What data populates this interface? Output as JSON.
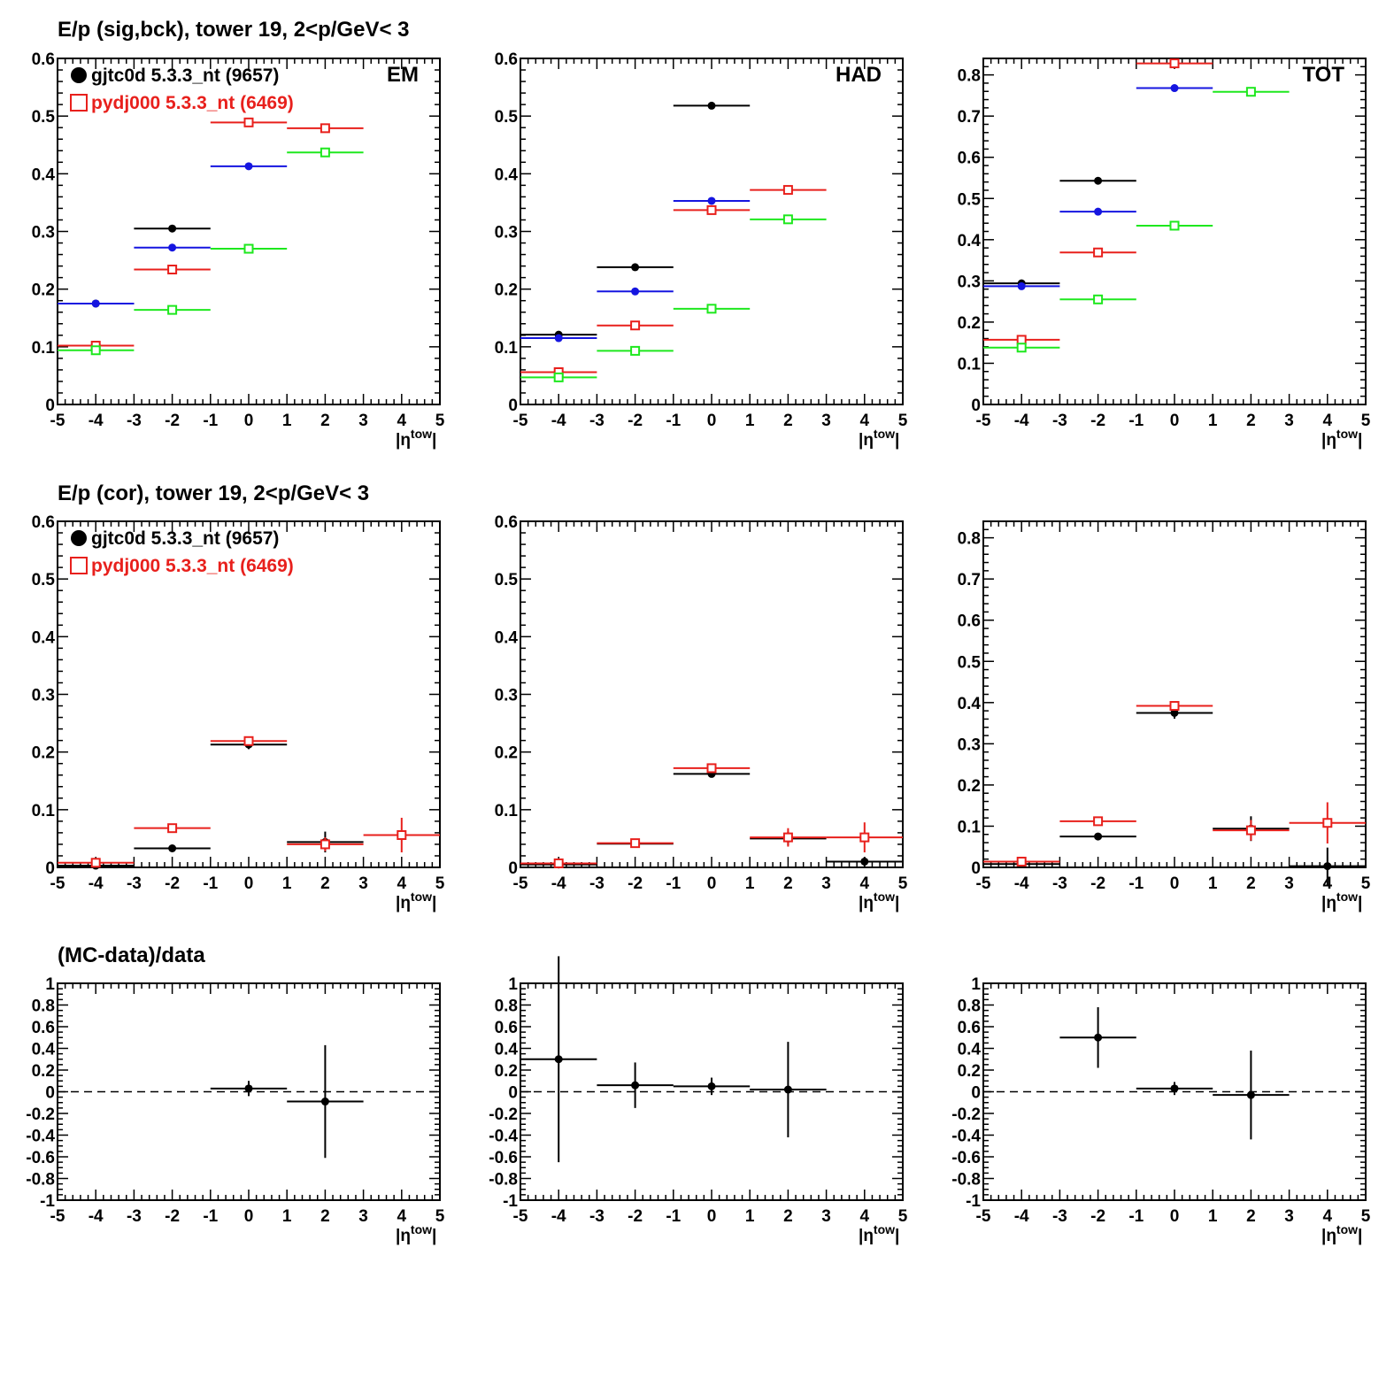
{
  "row_titles": [
    "E/p (sig,bck), tower 19,  2<p/GeV< 3",
    "E/p (cor), tower 19,  2<p/GeV< 3",
    "(MC-data)/data"
  ],
  "legend": [
    {
      "label": "gjtc0d 5.3.3_nt (9657)",
      "color": "#000000",
      "marker": "filled-circle"
    },
    {
      "label": "pydj000 5.3.3_nt (6469)",
      "color": "#e8201c",
      "marker": "open-square"
    }
  ],
  "colors": {
    "black": "#000000",
    "blue": "#1515e0",
    "red": "#e8201c",
    "green": "#1ee81e"
  },
  "x_axis_label": {
    "base": "|η",
    "sup": "tow",
    "end": "|"
  },
  "chart_data": [
    {
      "type": "scatter",
      "panel": "EM",
      "row": 0,
      "col": 0,
      "label": "EM",
      "xlim": [
        -5,
        5
      ],
      "ylim": [
        0,
        0.6
      ],
      "xticks": [
        -5,
        -4,
        -3,
        -2,
        -1,
        0,
        1,
        2,
        3,
        4,
        5
      ],
      "yticks": [
        0,
        0.1,
        0.2,
        0.3,
        0.4,
        0.5,
        0.6
      ],
      "yticklabels": [
        "0",
        "0.1",
        "0.2",
        "0.3",
        "0.4",
        "0.5",
        "0.6"
      ],
      "show_legend": true,
      "series": [
        {
          "color": "black",
          "marker": "filled-circle",
          "points": [
            {
              "x": -4,
              "y": 0.175
            },
            {
              "x": -2,
              "y": 0.305
            }
          ]
        },
        {
          "color": "blue",
          "marker": "filled-circle",
          "points": [
            {
              "x": -4,
              "y": 0.175
            },
            {
              "x": -2,
              "y": 0.272
            },
            {
              "x": 0,
              "y": 0.413
            }
          ]
        },
        {
          "color": "red",
          "marker": "open-square",
          "points": [
            {
              "x": -4,
              "y": 0.102
            },
            {
              "x": -2,
              "y": 0.234
            },
            {
              "x": 0,
              "y": 0.489
            },
            {
              "x": 2,
              "y": 0.479
            }
          ]
        },
        {
          "color": "green",
          "marker": "open-square",
          "points": [
            {
              "x": -4,
              "y": 0.094
            },
            {
              "x": -2,
              "y": 0.164
            },
            {
              "x": 0,
              "y": 0.27
            },
            {
              "x": 2,
              "y": 0.437
            }
          ]
        }
      ]
    },
    {
      "type": "scatter",
      "panel": "HAD",
      "row": 0,
      "col": 1,
      "label": "HAD",
      "xlim": [
        -5,
        5
      ],
      "ylim": [
        0,
        0.6
      ],
      "xticks": [
        -5,
        -4,
        -3,
        -2,
        -1,
        0,
        1,
        2,
        3,
        4,
        5
      ],
      "yticks": [
        0,
        0.1,
        0.2,
        0.3,
        0.4,
        0.5,
        0.6
      ],
      "yticklabels": [
        "0",
        "0.1",
        "0.2",
        "0.3",
        "0.4",
        "0.5",
        "0.6"
      ],
      "series": [
        {
          "color": "black",
          "marker": "filled-circle",
          "points": [
            {
              "x": -4,
              "y": 0.121
            },
            {
              "x": -2,
              "y": 0.238
            },
            {
              "x": 0,
              "y": 0.518
            }
          ]
        },
        {
          "color": "blue",
          "marker": "filled-circle",
          "points": [
            {
              "x": -4,
              "y": 0.115
            },
            {
              "x": -2,
              "y": 0.196
            },
            {
              "x": 0,
              "y": 0.353
            }
          ]
        },
        {
          "color": "red",
          "marker": "open-square",
          "points": [
            {
              "x": -4,
              "y": 0.056
            },
            {
              "x": -2,
              "y": 0.137
            },
            {
              "x": 0,
              "y": 0.337
            },
            {
              "x": 2,
              "y": 0.372
            }
          ]
        },
        {
          "color": "green",
          "marker": "open-square",
          "points": [
            {
              "x": -4,
              "y": 0.047
            },
            {
              "x": -2,
              "y": 0.093
            },
            {
              "x": 0,
              "y": 0.166
            },
            {
              "x": 2,
              "y": 0.321
            }
          ]
        }
      ]
    },
    {
      "type": "scatter",
      "panel": "TOT",
      "row": 0,
      "col": 2,
      "label": "TOT",
      "xlim": [
        -5,
        5
      ],
      "ylim": [
        0,
        0.84
      ],
      "xticks": [
        -5,
        -4,
        -3,
        -2,
        -1,
        0,
        1,
        2,
        3,
        4,
        5
      ],
      "yticks": [
        0,
        0.1,
        0.2,
        0.3,
        0.4,
        0.5,
        0.6,
        0.7,
        0.8
      ],
      "yticklabels": [
        "0",
        "0.1",
        "0.2",
        "0.3",
        "0.4",
        "0.5",
        "0.6",
        "0.7",
        "0.8"
      ],
      "series": [
        {
          "color": "black",
          "marker": "filled-circle",
          "points": [
            {
              "x": -4,
              "y": 0.294
            },
            {
              "x": -2,
              "y": 0.543
            }
          ]
        },
        {
          "color": "blue",
          "marker": "filled-circle",
          "points": [
            {
              "x": -4,
              "y": 0.287
            },
            {
              "x": -2,
              "y": 0.468
            },
            {
              "x": 0,
              "y": 0.768
            }
          ]
        },
        {
          "color": "red",
          "marker": "open-square",
          "points": [
            {
              "x": -4,
              "y": 0.157
            },
            {
              "x": -2,
              "y": 0.369
            },
            {
              "x": 0,
              "y": 0.828
            }
          ]
        },
        {
          "color": "green",
          "marker": "open-square",
          "points": [
            {
              "x": -4,
              "y": 0.138
            },
            {
              "x": -2,
              "y": 0.255
            },
            {
              "x": 0,
              "y": 0.434
            },
            {
              "x": 2,
              "y": 0.759
            }
          ]
        }
      ]
    },
    {
      "type": "scatter",
      "panel": "EM-cor",
      "row": 1,
      "col": 0,
      "label": "",
      "xlim": [
        -5,
        5
      ],
      "ylim": [
        0,
        0.6
      ],
      "xticks": [
        -5,
        -4,
        -3,
        -2,
        -1,
        0,
        1,
        2,
        3,
        4,
        5
      ],
      "yticks": [
        0,
        0.1,
        0.2,
        0.3,
        0.4,
        0.5,
        0.6
      ],
      "yticklabels": [
        "0",
        "0.1",
        "0.2",
        "0.3",
        "0.4",
        "0.5",
        "0.6"
      ],
      "show_legend": true,
      "series": [
        {
          "color": "black",
          "marker": "filled-circle",
          "points": [
            {
              "x": -4,
              "y": 0.003,
              "err": 0.004
            },
            {
              "x": -2,
              "y": 0.033,
              "err": 0.003
            },
            {
              "x": 0,
              "y": 0.213,
              "err": 0.008
            },
            {
              "x": 2,
              "y": 0.044,
              "err": 0.018
            }
          ]
        },
        {
          "color": "red",
          "marker": "open-square",
          "points": [
            {
              "x": -4,
              "y": 0.008,
              "err": 0.006
            },
            {
              "x": -2,
              "y": 0.068,
              "err": 0.004
            },
            {
              "x": 0,
              "y": 0.219,
              "err": 0.006
            },
            {
              "x": 2,
              "y": 0.04,
              "err": 0.012
            },
            {
              "x": 4,
              "y": 0.056,
              "err": 0.03
            }
          ]
        }
      ]
    },
    {
      "type": "scatter",
      "panel": "HAD-cor",
      "row": 1,
      "col": 1,
      "label": "",
      "xlim": [
        -5,
        5
      ],
      "ylim": [
        0,
        0.6
      ],
      "xticks": [
        -5,
        -4,
        -3,
        -2,
        -1,
        0,
        1,
        2,
        3,
        4,
        5
      ],
      "yticks": [
        0,
        0.1,
        0.2,
        0.3,
        0.4,
        0.5,
        0.6
      ],
      "yticklabels": [
        "0",
        "0.1",
        "0.2",
        "0.3",
        "0.4",
        "0.5",
        "0.6"
      ],
      "series": [
        {
          "color": "black",
          "marker": "filled-circle",
          "points": [
            {
              "x": -4,
              "y": 0.005,
              "err": 0.004
            },
            {
              "x": -2,
              "y": 0.041,
              "err": 0.004
            },
            {
              "x": 0,
              "y": 0.162,
              "err": 0.006
            },
            {
              "x": 2,
              "y": 0.05,
              "err": 0.012
            },
            {
              "x": 4,
              "y": 0.01,
              "err": 0.008
            }
          ]
        },
        {
          "color": "red",
          "marker": "open-square",
          "points": [
            {
              "x": -4,
              "y": 0.007,
              "err": 0.005
            },
            {
              "x": -2,
              "y": 0.042,
              "err": 0.004
            },
            {
              "x": 0,
              "y": 0.172,
              "err": 0.005
            },
            {
              "x": 2,
              "y": 0.052,
              "err": 0.016
            },
            {
              "x": 4,
              "y": 0.052,
              "err": 0.026
            }
          ]
        }
      ]
    },
    {
      "type": "scatter",
      "panel": "TOT-cor",
      "row": 1,
      "col": 2,
      "label": "",
      "xlim": [
        -5,
        5
      ],
      "ylim": [
        0,
        0.84
      ],
      "xticks": [
        -5,
        -4,
        -3,
        -2,
        -1,
        0,
        1,
        2,
        3,
        4,
        5
      ],
      "yticks": [
        0,
        0.1,
        0.2,
        0.3,
        0.4,
        0.5,
        0.6,
        0.7,
        0.8
      ],
      "yticklabels": [
        "0",
        "0.1",
        "0.2",
        "0.3",
        "0.4",
        "0.5",
        "0.6",
        "0.7",
        "0.8"
      ],
      "series": [
        {
          "color": "black",
          "marker": "filled-circle",
          "points": [
            {
              "x": -4,
              "y": 0.008,
              "err": 0.005
            },
            {
              "x": -2,
              "y": 0.075,
              "err": 0.006
            },
            {
              "x": 0,
              "y": 0.375,
              "err": 0.014
            },
            {
              "x": 2,
              "y": 0.094,
              "err": 0.03
            },
            {
              "x": 4,
              "y": 0.003,
              "err": 0.045
            }
          ]
        },
        {
          "color": "red",
          "marker": "open-square",
          "points": [
            {
              "x": -4,
              "y": 0.014,
              "err": 0.006
            },
            {
              "x": -2,
              "y": 0.112,
              "err": 0.006
            },
            {
              "x": 0,
              "y": 0.392,
              "err": 0.01
            },
            {
              "x": 2,
              "y": 0.09,
              "err": 0.025
            },
            {
              "x": 4,
              "y": 0.108,
              "err": 0.05
            }
          ]
        }
      ]
    },
    {
      "type": "scatter",
      "panel": "EM-ratio",
      "row": 2,
      "col": 0,
      "label": "",
      "xlim": [
        -5,
        5
      ],
      "ylim": [
        -1,
        1
      ],
      "xticks": [
        -5,
        -4,
        -3,
        -2,
        -1,
        0,
        1,
        2,
        3,
        4,
        5
      ],
      "yticks": [
        -1,
        -0.8,
        -0.6,
        -0.4,
        -0.2,
        0,
        0.2,
        0.4,
        0.6,
        0.8,
        1
      ],
      "yticklabels": [
        "-1",
        "-0.8",
        "-0.6",
        "-0.4",
        "-0.2",
        "0",
        "0.2",
        "0.4",
        "0.6",
        "0.8",
        "1"
      ],
      "zero_line": true,
      "series": [
        {
          "color": "black",
          "marker": "filled-circle",
          "points": [
            {
              "x": 0,
              "y": 0.03,
              "err": 0.07
            },
            {
              "x": 2,
              "y": -0.09,
              "err": 0.52
            }
          ]
        }
      ]
    },
    {
      "type": "scatter",
      "panel": "HAD-ratio",
      "row": 2,
      "col": 1,
      "label": "",
      "xlim": [
        -5,
        5
      ],
      "ylim": [
        -1,
        1
      ],
      "xticks": [
        -5,
        -4,
        -3,
        -2,
        -1,
        0,
        1,
        2,
        3,
        4,
        5
      ],
      "yticks": [
        -1,
        -0.8,
        -0.6,
        -0.4,
        -0.2,
        0,
        0.2,
        0.4,
        0.6,
        0.8,
        1
      ],
      "yticklabels": [
        "-1",
        "-0.8",
        "-0.6",
        "-0.4",
        "-0.2",
        "0",
        "0.2",
        "0.4",
        "0.6",
        "0.8",
        "1"
      ],
      "zero_line": true,
      "series": [
        {
          "color": "black",
          "marker": "filled-circle",
          "points": [
            {
              "x": -4,
              "y": 0.3,
              "err": 0.95
            },
            {
              "x": -2,
              "y": 0.06,
              "err": 0.21
            },
            {
              "x": 0,
              "y": 0.05,
              "err": 0.08
            },
            {
              "x": 2,
              "y": 0.02,
              "err": 0.44
            }
          ]
        }
      ]
    },
    {
      "type": "scatter",
      "panel": "TOT-ratio",
      "row": 2,
      "col": 2,
      "label": "",
      "xlim": [
        -5,
        5
      ],
      "ylim": [
        -1,
        1
      ],
      "xticks": [
        -5,
        -4,
        -3,
        -2,
        -1,
        0,
        1,
        2,
        3,
        4,
        5
      ],
      "yticks": [
        -1,
        -0.8,
        -0.6,
        -0.4,
        -0.2,
        0,
        0.2,
        0.4,
        0.6,
        0.8,
        1
      ],
      "yticklabels": [
        "-1",
        "-0.8",
        "-0.6",
        "-0.4",
        "-0.2",
        "0",
        "0.2",
        "0.4",
        "0.6",
        "0.8",
        "1"
      ],
      "zero_line": true,
      "series": [
        {
          "color": "black",
          "marker": "filled-circle",
          "points": [
            {
              "x": -2,
              "y": 0.5,
              "err": 0.28
            },
            {
              "x": 0,
              "y": 0.03,
              "err": 0.06
            },
            {
              "x": 2,
              "y": -0.03,
              "err": 0.41
            }
          ]
        }
      ]
    }
  ]
}
